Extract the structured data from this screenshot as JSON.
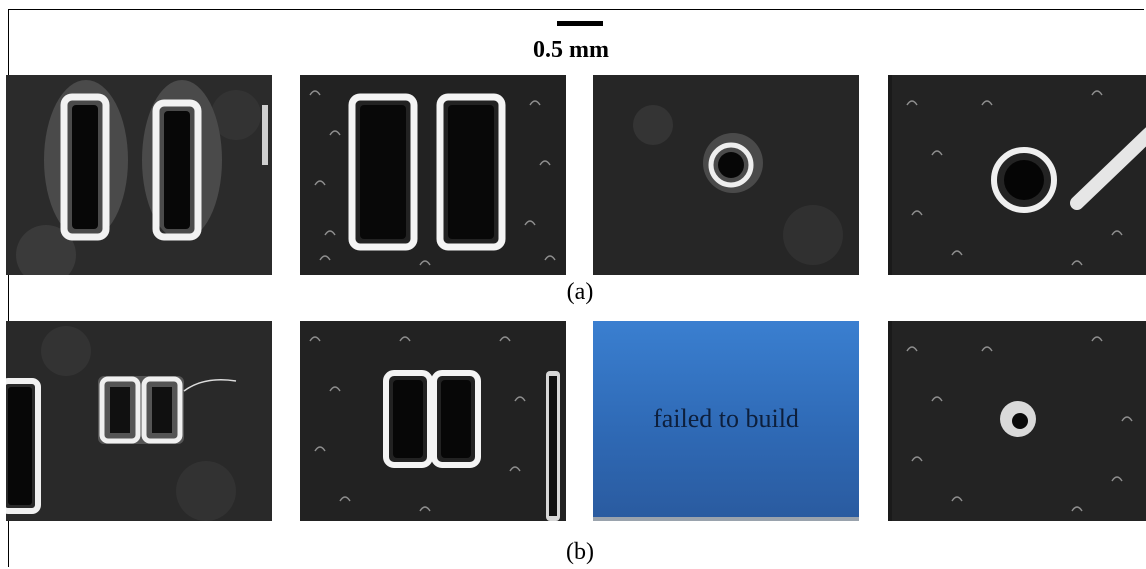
{
  "scale": {
    "label": "0.5 mm"
  },
  "rows": [
    {
      "caption": "(a)"
    },
    {
      "caption": "(b)"
    }
  ],
  "failed_panel": {
    "text": "failed to build",
    "color": "#3a7fd0"
  },
  "colors": {
    "background": "#ffffff",
    "micrograph": "#1a1a1a",
    "feature_edge": "#f0f0f0"
  }
}
